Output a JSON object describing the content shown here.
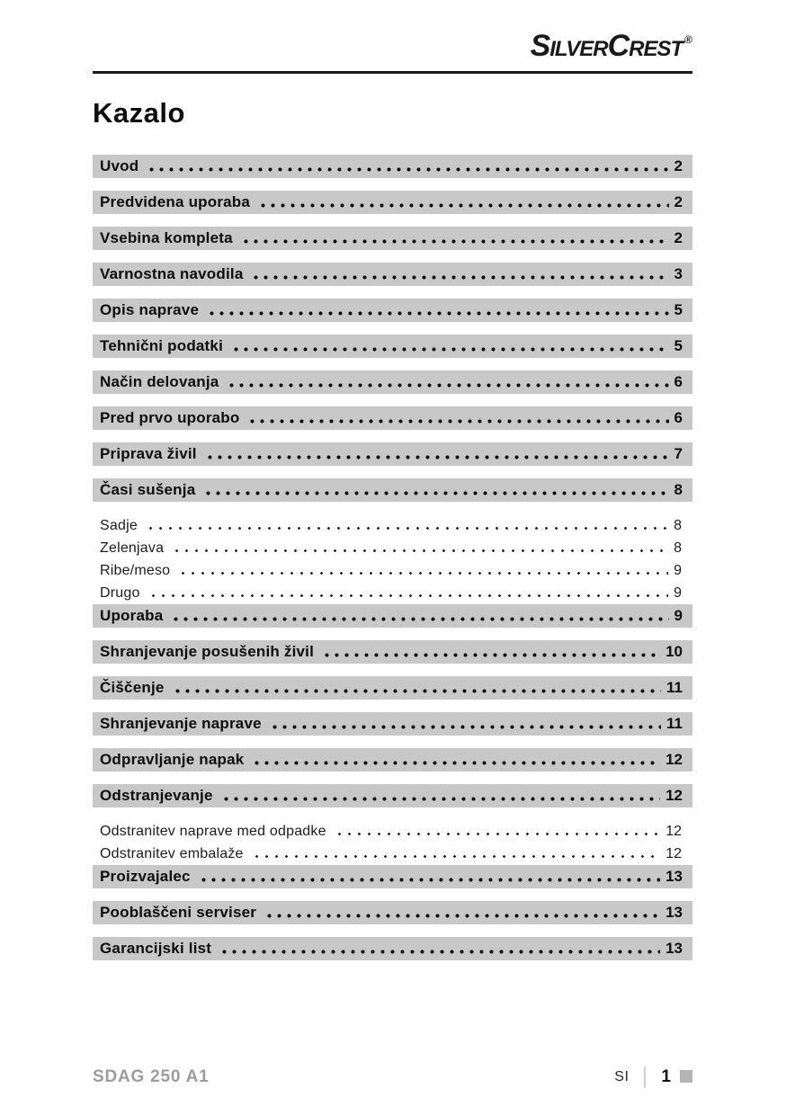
{
  "header": {
    "logo": {
      "first": "Silver",
      "second": "Crest",
      "registered": "®"
    }
  },
  "title": "Kazalo",
  "toc": [
    {
      "label": "Uvod",
      "page": "2",
      "level": "main"
    },
    {
      "label": "Predvidena uporaba",
      "page": "2",
      "level": "main"
    },
    {
      "label": "Vsebina kompleta",
      "page": "2",
      "level": "main"
    },
    {
      "label": "Varnostna navodila",
      "page": "3",
      "level": "main"
    },
    {
      "label": "Opis naprave",
      "page": "5",
      "level": "main"
    },
    {
      "label": "Tehnični podatki",
      "page": "5",
      "level": "main"
    },
    {
      "label": "Način delovanja",
      "page": "6",
      "level": "main"
    },
    {
      "label": "Pred prvo uporabo",
      "page": "6",
      "level": "main"
    },
    {
      "label": "Priprava živil",
      "page": "7",
      "level": "main"
    },
    {
      "label": "Časi sušenja",
      "page": "8",
      "level": "main"
    },
    {
      "label": "Sadje",
      "page": "8",
      "level": "sub"
    },
    {
      "label": "Zelenjava",
      "page": "8",
      "level": "sub"
    },
    {
      "label": "Ribe/meso",
      "page": "9",
      "level": "sub"
    },
    {
      "label": "Drugo",
      "page": "9",
      "level": "sub"
    },
    {
      "label": "Uporaba",
      "page": "9",
      "level": "main"
    },
    {
      "label": "Shranjevanje posušenih živil",
      "page": "10",
      "level": "main"
    },
    {
      "label": "Čiščenje",
      "page": "11",
      "level": "main"
    },
    {
      "label": "Shranjevanje naprave",
      "page": "11",
      "level": "main"
    },
    {
      "label": "Odpravljanje napak",
      "page": "12",
      "level": "main"
    },
    {
      "label": "Odstranjevanje",
      "page": "12",
      "level": "main"
    },
    {
      "label": "Odstranitev naprave med odpadke",
      "page": "12",
      "level": "sub"
    },
    {
      "label": "Odstranitev embalaže",
      "page": "12",
      "level": "sub"
    },
    {
      "label": "Proizvajalec",
      "page": "13",
      "level": "main"
    },
    {
      "label": "Pooblaščeni serviser",
      "page": "13",
      "level": "main"
    },
    {
      "label": "Garancijski list",
      "page": "13",
      "level": "main"
    }
  ],
  "footer": {
    "model": "SDAG 250 A1",
    "language": "SI",
    "page_number": "1"
  }
}
